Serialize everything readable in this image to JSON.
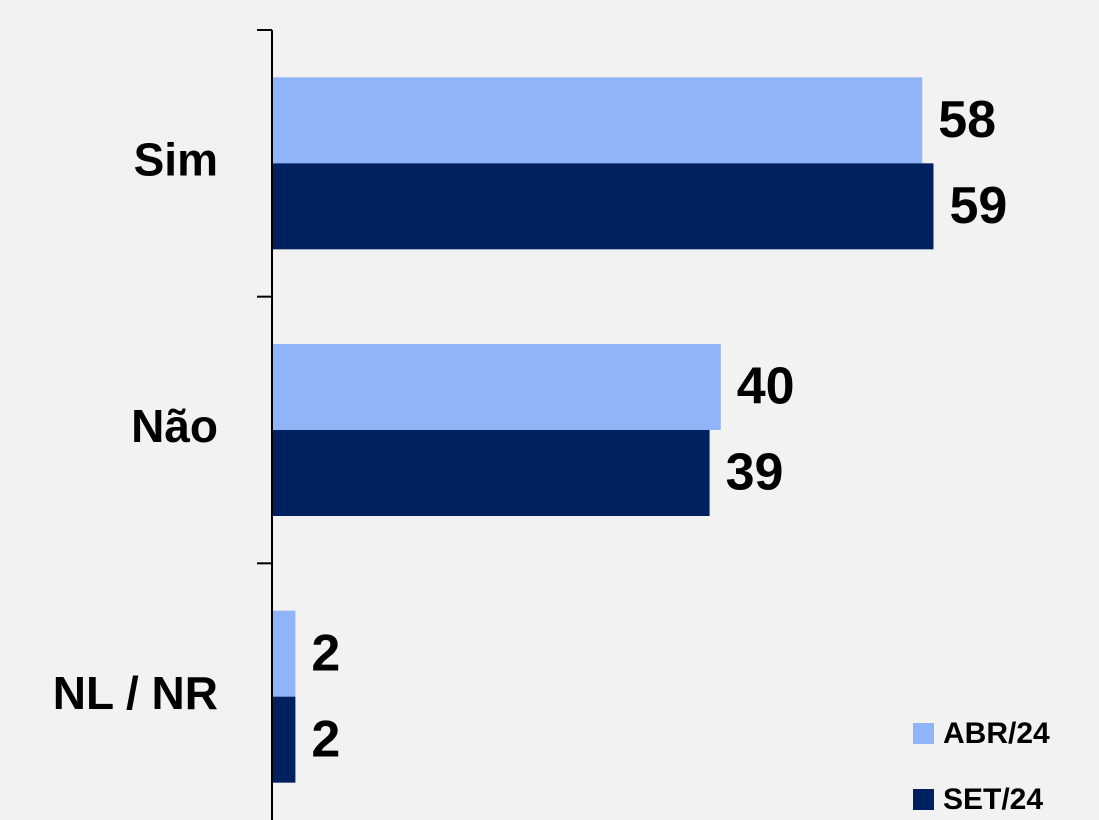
{
  "chart_data": {
    "type": "bar",
    "orientation": "horizontal",
    "categories": [
      "Sim",
      "Não",
      "NL / NR"
    ],
    "series": [
      {
        "name": "ABR/24",
        "color": "#8fb4f8",
        "values": [
          58,
          40,
          2
        ]
      },
      {
        "name": "SET/24",
        "color": "#002060",
        "values": [
          59,
          39,
          2
        ]
      }
    ],
    "xlim": [
      0,
      72
    ],
    "legend": "lower right"
  }
}
